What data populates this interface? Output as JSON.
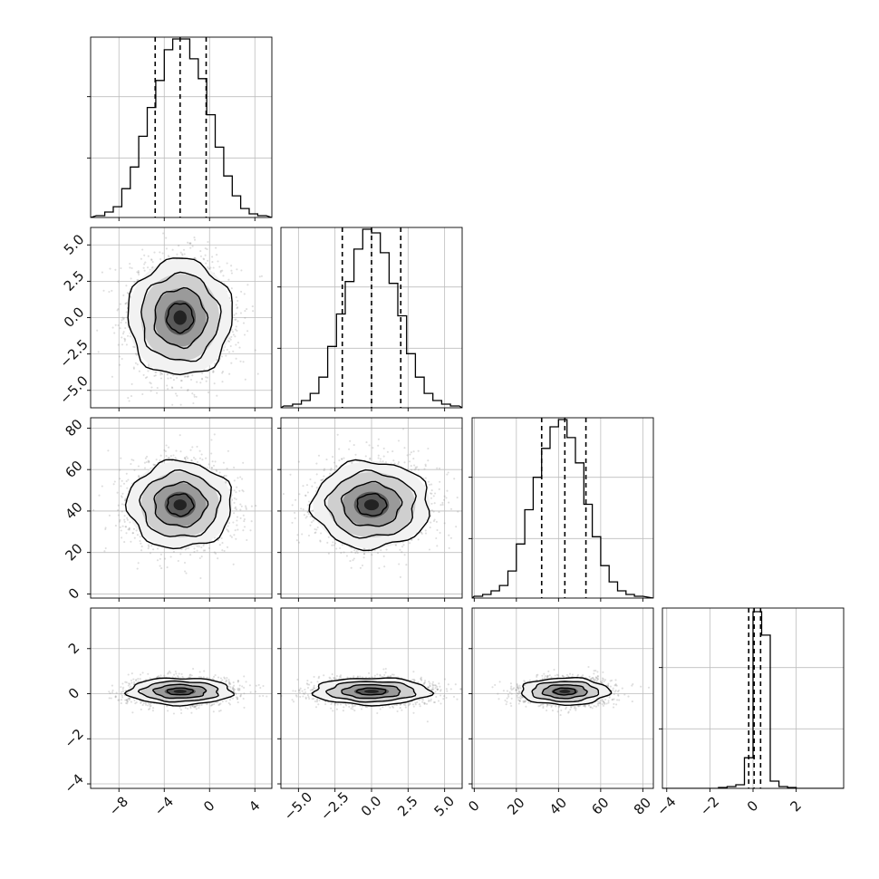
{
  "figure": {
    "type": "corner-plot",
    "parameters": 4
  },
  "chart_data": {
    "type": "corner",
    "grid": true,
    "background": "#ffffff",
    "line_color": "#000000",
    "point_color": "#888888",
    "histograms": [
      {
        "parameter": 1,
        "type": "histogram",
        "xlim": [
          -10.5,
          5.5
        ],
        "ylim": [
          0,
          1
        ],
        "y_ticks_labelled": false,
        "quantiles": [
          -4.8,
          -2.6,
          -0.3
        ],
        "bin_edges": [
          -10.0,
          -9.25,
          -8.5,
          -7.75,
          -7.0,
          -6.25,
          -5.5,
          -4.75,
          -4.0,
          -3.25,
          -2.5,
          -1.75,
          -1.0,
          -0.25,
          0.5,
          1.25,
          2.0,
          2.75,
          3.5,
          4.25,
          5.0
        ],
        "counts": [
          0.01,
          0.03,
          0.06,
          0.16,
          0.28,
          0.45,
          0.61,
          0.76,
          0.93,
          0.99,
          0.99,
          0.88,
          0.77,
          0.57,
          0.39,
          0.23,
          0.12,
          0.05,
          0.02,
          0.01
        ]
      },
      {
        "parameter": 2,
        "type": "histogram",
        "xlim": [
          -6.2,
          6.2
        ],
        "ylim": [
          0,
          1
        ],
        "y_ticks_labelled": false,
        "quantiles": [
          -2.0,
          0.0,
          2.0
        ],
        "bin_edges": [
          -6.0,
          -5.4,
          -4.8,
          -4.2,
          -3.6,
          -3.0,
          -2.4,
          -1.8,
          -1.2,
          -0.6,
          0.0,
          0.6,
          1.2,
          1.8,
          2.4,
          3.0,
          3.6,
          4.2,
          4.8,
          5.4,
          6.0
        ],
        "counts": [
          0.01,
          0.02,
          0.04,
          0.08,
          0.17,
          0.34,
          0.52,
          0.7,
          0.88,
          0.99,
          0.97,
          0.86,
          0.69,
          0.51,
          0.3,
          0.17,
          0.08,
          0.04,
          0.02,
          0.01
        ]
      },
      {
        "parameter": 3,
        "type": "histogram",
        "xlim": [
          -1,
          85
        ],
        "ylim": [
          0,
          1
        ],
        "y_ticks_labelled": false,
        "quantiles": [
          32,
          43,
          53
        ],
        "bin_edges": [
          0,
          4,
          8,
          12,
          16,
          20,
          24,
          28,
          32,
          36,
          40,
          44,
          48,
          52,
          56,
          60,
          64,
          68,
          72,
          76,
          80
        ],
        "counts": [
          0.01,
          0.02,
          0.04,
          0.07,
          0.15,
          0.3,
          0.49,
          0.67,
          0.83,
          0.95,
          0.99,
          0.89,
          0.75,
          0.52,
          0.34,
          0.18,
          0.09,
          0.04,
          0.02,
          0.01
        ]
      },
      {
        "parameter": 4,
        "type": "histogram",
        "xlim": [
          -4.2,
          4.2
        ],
        "ylim": [
          0,
          1
        ],
        "y_ticks_labelled": false,
        "quantiles": [
          -0.2,
          0.05,
          0.35
        ],
        "bin_edges": [
          -4.0,
          -3.6,
          -3.2,
          -2.8,
          -2.4,
          -2.0,
          -1.6,
          -1.2,
          -0.8,
          -0.4,
          0.0,
          0.4,
          0.8,
          1.2,
          1.6,
          2.0,
          2.4,
          2.8,
          3.2,
          3.6,
          4.0
        ],
        "counts": [
          0,
          0,
          0,
          0,
          0,
          0,
          0.005,
          0.01,
          0.02,
          0.17,
          0.98,
          0.85,
          0.04,
          0.01,
          0.005,
          0,
          0,
          0,
          0,
          0
        ]
      }
    ],
    "scatter_panels": [
      {
        "row": 2,
        "col": 1,
        "type": "scatter-contour",
        "xlim": [
          -10.5,
          5.5
        ],
        "ylim": [
          -6.2,
          6.2
        ],
        "mean": [
          -2.6,
          0.0
        ],
        "sd": [
          2.3,
          2.0
        ],
        "contour_sigma": [
          0.5,
          1.0,
          1.5,
          2.0
        ]
      },
      {
        "row": 3,
        "col": 1,
        "type": "scatter-contour",
        "xlim": [
          -10.5,
          5.5
        ],
        "ylim": [
          -2,
          85
        ],
        "mean": [
          -2.6,
          43
        ],
        "sd": [
          2.3,
          10.5
        ],
        "contour_sigma": [
          0.5,
          1.0,
          1.5,
          2.0
        ]
      },
      {
        "row": 3,
        "col": 2,
        "type": "scatter-contour",
        "xlim": [
          -6.2,
          6.2
        ],
        "ylim": [
          -2,
          85
        ],
        "mean": [
          0.0,
          43
        ],
        "sd": [
          2.0,
          10.5
        ],
        "contour_sigma": [
          0.5,
          1.0,
          1.5,
          2.0
        ]
      },
      {
        "row": 4,
        "col": 1,
        "type": "scatter-contour",
        "xlim": [
          -10.5,
          5.5
        ],
        "ylim": [
          -4.2,
          3.8
        ],
        "mean": [
          -2.6,
          0.1
        ],
        "sd": [
          2.3,
          0.3
        ],
        "contour_sigma": [
          0.5,
          1.0,
          1.5,
          2.0
        ]
      },
      {
        "row": 4,
        "col": 2,
        "type": "scatter-contour",
        "xlim": [
          -6.2,
          6.2
        ],
        "ylim": [
          -4.2,
          3.8
        ],
        "mean": [
          0.0,
          0.1
        ],
        "sd": [
          2.0,
          0.3
        ],
        "contour_sigma": [
          0.5,
          1.0,
          1.5,
          2.0
        ]
      },
      {
        "row": 4,
        "col": 3,
        "type": "scatter-contour",
        "xlim": [
          -1,
          85
        ],
        "ylim": [
          -4.2,
          3.8
        ],
        "mean": [
          43,
          0.1
        ],
        "sd": [
          10.5,
          0.3
        ],
        "contour_sigma": [
          0.5,
          1.0,
          1.5,
          2.0
        ]
      }
    ],
    "left_axis_ticks": [
      {
        "row": 2,
        "values": [
          -5.0,
          -2.5,
          0.0,
          2.5,
          5.0
        ],
        "labels": [
          "−5.0",
          "−2.5",
          "0.0",
          "2.5",
          "5.0"
        ]
      },
      {
        "row": 3,
        "values": [
          0,
          20,
          40,
          60,
          80
        ],
        "labels": [
          "0",
          "20",
          "40",
          "60",
          "80"
        ]
      },
      {
        "row": 4,
        "values": [
          -4,
          -2,
          0,
          2
        ],
        "labels": [
          "−4",
          "−2",
          "0",
          "2"
        ]
      }
    ],
    "bottom_axis_ticks": [
      {
        "col": 1,
        "values": [
          -8,
          -4,
          0,
          4
        ],
        "labels": [
          "−8",
          "−4",
          "0",
          "4"
        ]
      },
      {
        "col": 2,
        "values": [
          -5.0,
          -2.5,
          0.0,
          2.5,
          5.0
        ],
        "labels": [
          "−5.0",
          "−2.5",
          "0.0",
          "2.5",
          "5.0"
        ]
      },
      {
        "col": 3,
        "values": [
          0,
          20,
          40,
          60,
          80
        ],
        "labels": [
          "0",
          "20",
          "40",
          "60",
          "80"
        ]
      },
      {
        "col": 4,
        "values": [
          -4,
          -2,
          0,
          2
        ],
        "labels": [
          "−4",
          "−2",
          "0",
          "2"
        ]
      }
    ]
  }
}
